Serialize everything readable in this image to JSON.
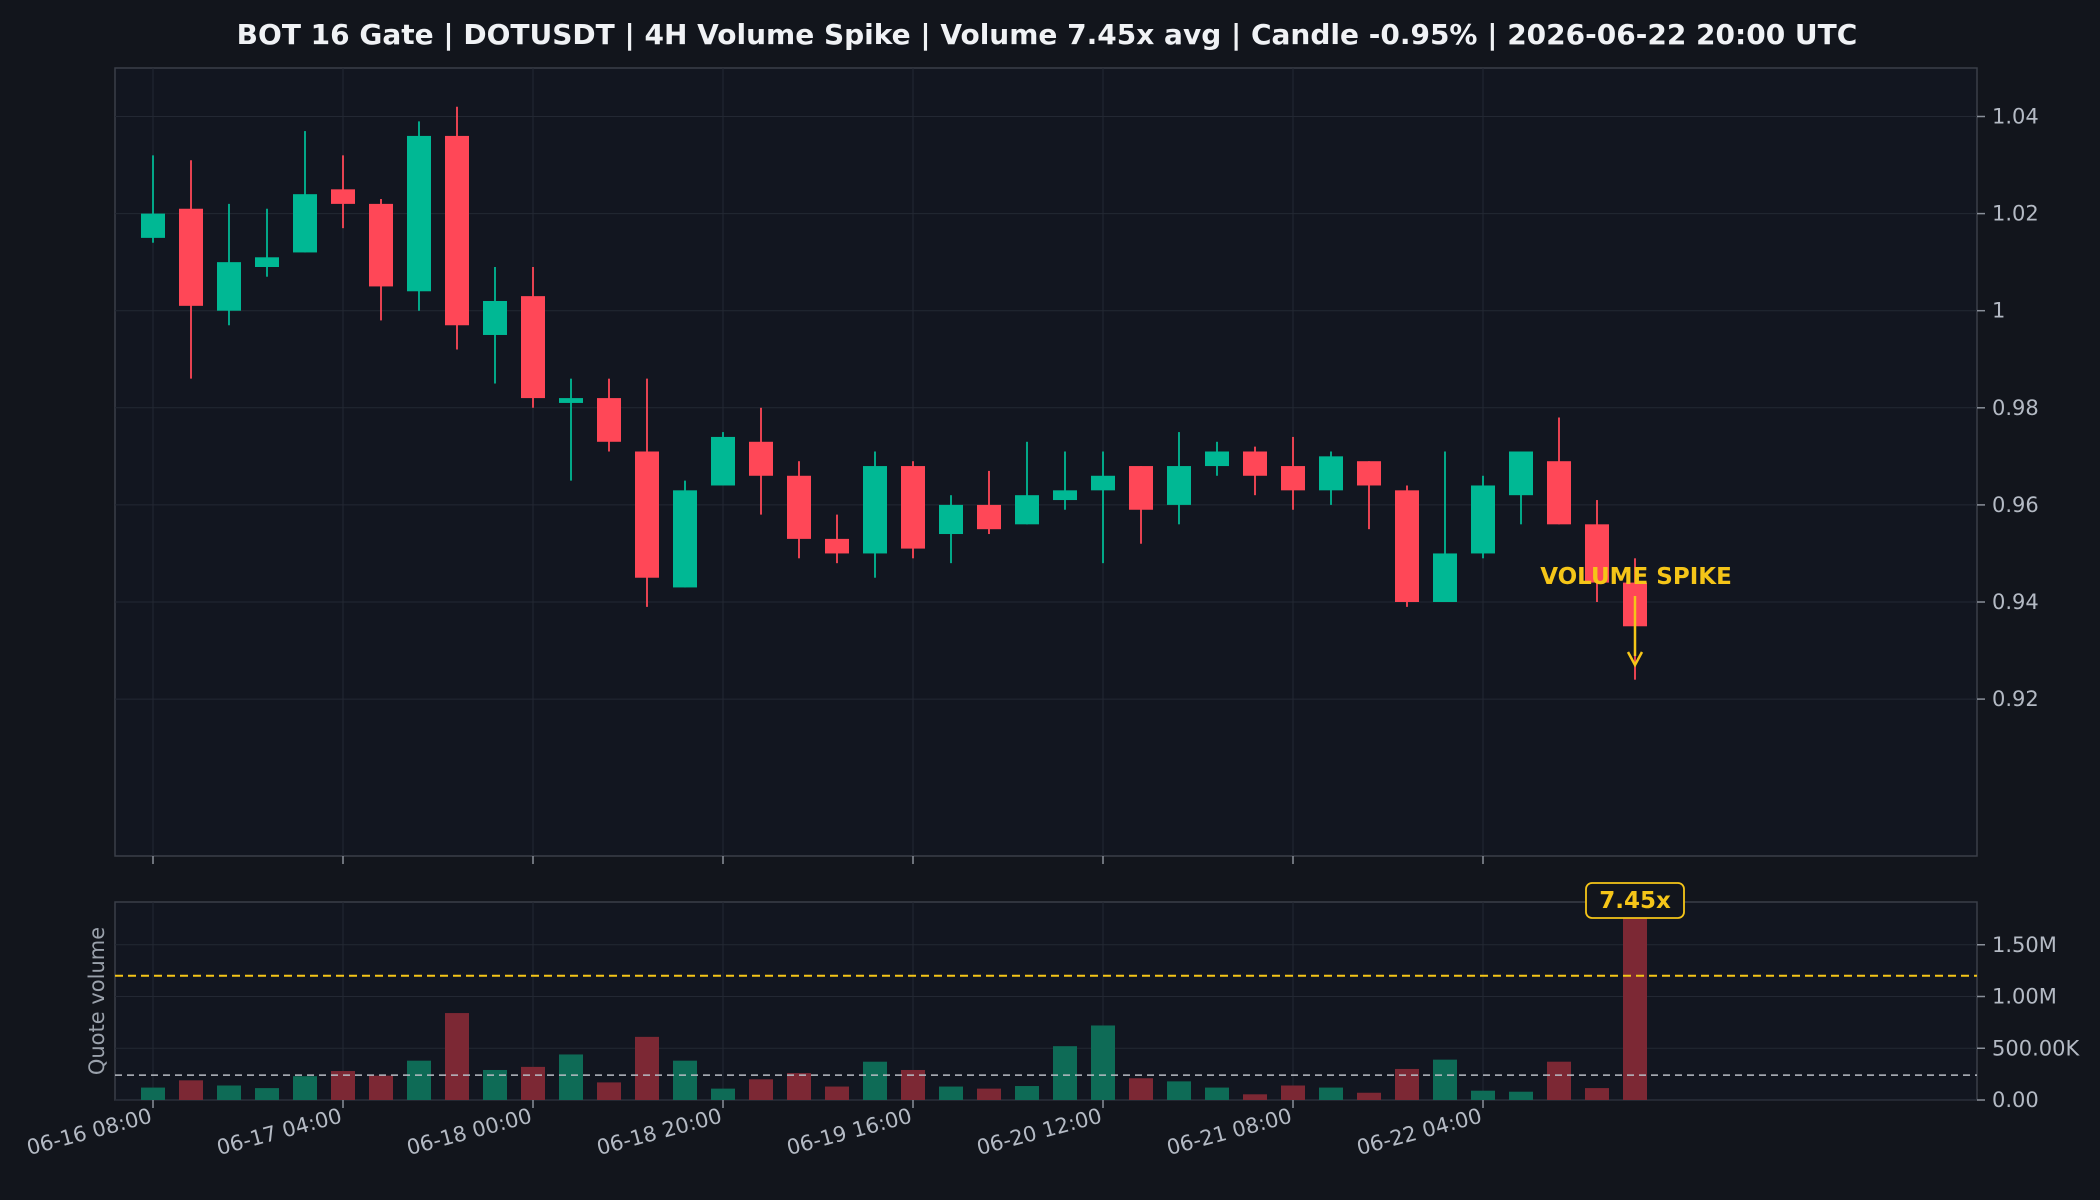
{
  "chart_data": {
    "type": "candlestick",
    "title": "BOT 16 Gate | DOTUSDT | 4H Volume Spike | Volume 7.45x avg | Candle -0.95% | 2026-06-22 20:00 UTC",
    "x_tick_labels": [
      "06-16 08:00",
      "06-17 04:00",
      "06-18 00:00",
      "06-18 20:00",
      "06-19 16:00",
      "06-20 12:00",
      "06-21 08:00",
      "06-22 04:00"
    ],
    "price_axis": {
      "ticks": [
        "1.04",
        "1.02",
        "1",
        "0.98",
        "0.96",
        "0.94",
        "0.92"
      ],
      "ylim": [
        0.918,
        1.048
      ]
    },
    "volume_axis": {
      "label": "Quote volume",
      "ticks": [
        "0.00",
        "500.00K",
        "1.00M",
        "1.50M"
      ],
      "ylim": [
        0,
        1860000
      ]
    },
    "volume_avg": 240000,
    "volume_threshold": 1200000,
    "annotation": "VOLUME SPIKE",
    "badge": "7.45x",
    "colors": {
      "up": "#00b894",
      "down": "#ff4757",
      "up_volume": "#0e6b56",
      "down_volume": "#7c2834",
      "accent": "#f5c518",
      "avg_line": "#b8bcc4",
      "background": "#12151c"
    },
    "candles": [
      {
        "o": 1.015,
        "h": 1.032,
        "l": 1.014,
        "c": 1.02,
        "v": 120000
      },
      {
        "o": 1.021,
        "h": 1.031,
        "l": 0.986,
        "c": 1.001,
        "v": 190000
      },
      {
        "o": 1.0,
        "h": 1.022,
        "l": 0.997,
        "c": 1.01,
        "v": 140000
      },
      {
        "o": 1.009,
        "h": 1.021,
        "l": 1.007,
        "c": 1.011,
        "v": 115000
      },
      {
        "o": 1.012,
        "h": 1.037,
        "l": 1.012,
        "c": 1.024,
        "v": 230000
      },
      {
        "o": 1.025,
        "h": 1.032,
        "l": 1.017,
        "c": 1.022,
        "v": 280000
      },
      {
        "o": 1.022,
        "h": 1.023,
        "l": 0.998,
        "c": 1.005,
        "v": 235000
      },
      {
        "o": 1.004,
        "h": 1.039,
        "l": 1.0,
        "c": 1.036,
        "v": 380000
      },
      {
        "o": 1.036,
        "h": 1.042,
        "l": 0.992,
        "c": 0.997,
        "v": 840000
      },
      {
        "o": 0.995,
        "h": 1.009,
        "l": 0.985,
        "c": 1.002,
        "v": 290000
      },
      {
        "o": 1.003,
        "h": 1.009,
        "l": 0.98,
        "c": 0.982,
        "v": 320000
      },
      {
        "o": 0.981,
        "h": 0.986,
        "l": 0.965,
        "c": 0.982,
        "v": 440000
      },
      {
        "o": 0.982,
        "h": 0.986,
        "l": 0.971,
        "c": 0.973,
        "v": 170000
      },
      {
        "o": 0.971,
        "h": 0.986,
        "l": 0.939,
        "c": 0.945,
        "v": 610000
      },
      {
        "o": 0.943,
        "h": 0.965,
        "l": 0.943,
        "c": 0.963,
        "v": 380000
      },
      {
        "o": 0.964,
        "h": 0.975,
        "l": 0.964,
        "c": 0.974,
        "v": 110000
      },
      {
        "o": 0.973,
        "h": 0.98,
        "l": 0.958,
        "c": 0.966,
        "v": 200000
      },
      {
        "o": 0.966,
        "h": 0.969,
        "l": 0.949,
        "c": 0.953,
        "v": 260000
      },
      {
        "o": 0.953,
        "h": 0.958,
        "l": 0.948,
        "c": 0.95,
        "v": 130000
      },
      {
        "o": 0.95,
        "h": 0.971,
        "l": 0.945,
        "c": 0.968,
        "v": 370000
      },
      {
        "o": 0.968,
        "h": 0.969,
        "l": 0.949,
        "c": 0.951,
        "v": 290000
      },
      {
        "o": 0.954,
        "h": 0.962,
        "l": 0.948,
        "c": 0.96,
        "v": 130000
      },
      {
        "o": 0.96,
        "h": 0.967,
        "l": 0.954,
        "c": 0.955,
        "v": 110000
      },
      {
        "o": 0.956,
        "h": 0.973,
        "l": 0.956,
        "c": 0.962,
        "v": 135000
      },
      {
        "o": 0.961,
        "h": 0.971,
        "l": 0.959,
        "c": 0.963,
        "v": 520000
      },
      {
        "o": 0.963,
        "h": 0.971,
        "l": 0.948,
        "c": 0.966,
        "v": 720000
      },
      {
        "o": 0.968,
        "h": 0.968,
        "l": 0.952,
        "c": 0.959,
        "v": 210000
      },
      {
        "o": 0.96,
        "h": 0.975,
        "l": 0.956,
        "c": 0.968,
        "v": 180000
      },
      {
        "o": 0.968,
        "h": 0.973,
        "l": 0.966,
        "c": 0.971,
        "v": 120000
      },
      {
        "o": 0.971,
        "h": 0.972,
        "l": 0.962,
        "c": 0.966,
        "v": 55000
      },
      {
        "o": 0.968,
        "h": 0.974,
        "l": 0.959,
        "c": 0.963,
        "v": 140000
      },
      {
        "o": 0.963,
        "h": 0.971,
        "l": 0.96,
        "c": 0.97,
        "v": 120000
      },
      {
        "o": 0.969,
        "h": 0.969,
        "l": 0.955,
        "c": 0.964,
        "v": 70000
      },
      {
        "o": 0.963,
        "h": 0.964,
        "l": 0.939,
        "c": 0.94,
        "v": 300000
      },
      {
        "o": 0.94,
        "h": 0.971,
        "l": 0.94,
        "c": 0.95,
        "v": 390000
      },
      {
        "o": 0.95,
        "h": 0.966,
        "l": 0.949,
        "c": 0.964,
        "v": 90000
      },
      {
        "o": 0.962,
        "h": 0.971,
        "l": 0.956,
        "c": 0.971,
        "v": 80000
      },
      {
        "o": 0.969,
        "h": 0.978,
        "l": 0.956,
        "c": 0.956,
        "v": 370000
      },
      {
        "o": 0.956,
        "h": 0.961,
        "l": 0.94,
        "c": 0.944,
        "v": 115000
      },
      {
        "o": 0.944,
        "h": 0.949,
        "l": 0.924,
        "c": 0.935,
        "v": 1790000
      }
    ]
  }
}
